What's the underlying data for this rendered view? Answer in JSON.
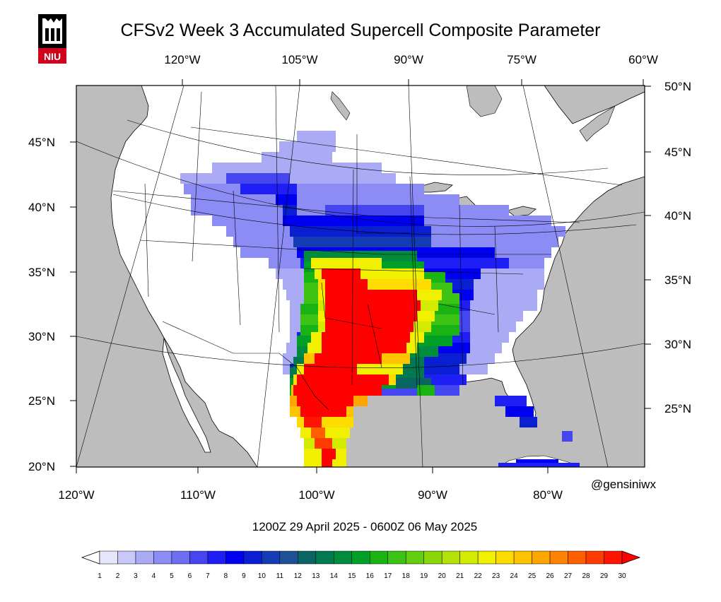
{
  "logo": {
    "text": "NIU"
  },
  "title": "CFSv2 Week 3 Accumulated Supercell Composite Parameter",
  "credit": "@gensiniwx",
  "valid_period": "1200Z 29  April  2025  - 0600Z 06  May  2025",
  "axes": {
    "top_lon_labels": [
      "120°W",
      "105°W",
      "90°W",
      "75°W",
      "60°W"
    ],
    "bottom_lon_labels": [
      "120°W",
      "110°W",
      "100°W",
      "90°W",
      "80°W"
    ],
    "left_lat_labels": [
      "45°N",
      "40°N",
      "35°N",
      "30°N",
      "25°N",
      "20°N"
    ],
    "right_lat_labels": [
      "50°N",
      "45°N",
      "40°N",
      "35°N",
      "30°N",
      "25°N"
    ]
  },
  "colorbar": {
    "labels": [
      "1",
      "2",
      "3",
      "4",
      "5",
      "6",
      "7",
      "8",
      "9",
      "10",
      "11",
      "12",
      "13",
      "14",
      "15",
      "16",
      "17",
      "18",
      "19",
      "20",
      "21",
      "22",
      "23",
      "24",
      "25",
      "26",
      "27",
      "28",
      "29",
      "30"
    ],
    "colors": [
      "#ffffff",
      "#e6e6fa",
      "#c8c8fa",
      "#aaaaf5",
      "#8c8cf5",
      "#6e6ef0",
      "#4646f0",
      "#1e1ef5",
      "#0000f0",
      "#0a1ed2",
      "#143cb4",
      "#1e5096",
      "#0a6464",
      "#007850",
      "#008c3c",
      "#00a028",
      "#19b414",
      "#3cc314",
      "#64cd0f",
      "#8cd70a",
      "#b4e10a",
      "#d2eb00",
      "#f0f000",
      "#ffdc00",
      "#ffc300",
      "#ffa500",
      "#ff8200",
      "#ff5f00",
      "#ff3c00",
      "#ff1400",
      "#ff0000"
    ]
  }
}
